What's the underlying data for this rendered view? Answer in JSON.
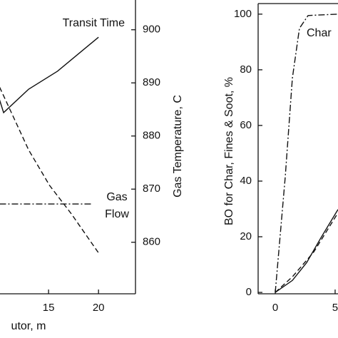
{
  "chart_data": [
    {
      "type": "line",
      "x_label": "utor, m",
      "y2_label": "Gas Temperature, C",
      "annotations": [
        "Transit Time",
        "Gas",
        "Flow"
      ],
      "xlim": [
        10.14,
        23.7
      ],
      "xticks": [
        15,
        20
      ],
      "y2lim": [
        850.3,
        905.6
      ],
      "y2ticks": [
        860,
        870,
        880,
        890,
        900
      ],
      "series": [
        {
          "style": "solid",
          "color": "#111111",
          "axis": "y2",
          "x": [
            10.1,
            10.5,
            13.0,
            15.9,
            20.0
          ],
          "values": [
            886.8,
            884.4,
            888.8,
            892.2,
            898.6
          ]
        },
        {
          "style": "dashed",
          "color": "#111111",
          "axis": "y2",
          "x": [
            10.1,
            13.0,
            15.1,
            17.3,
            20.0
          ],
          "values": [
            889.2,
            877.4,
            870.7,
            865.3,
            858.0
          ]
        },
        {
          "style": "dashdot",
          "color": "#111111",
          "axis": "y2",
          "x": [
            10.1,
            19.4
          ],
          "values": [
            867.2,
            867.2
          ]
        }
      ]
    },
    {
      "type": "line",
      "y_label": "BO for Char, Fines & Soot, %",
      "annotations": [
        "Char"
      ],
      "xlim": [
        -1.43,
        5.24
      ],
      "xticks": [
        0,
        5
      ],
      "ylim": [
        -0.5,
        103.8
      ],
      "yticks": [
        0,
        20,
        40,
        60,
        80,
        100
      ],
      "series": [
        {
          "style": "dashdot",
          "color": "#111111",
          "x": [
            0,
            0.83,
            1.43,
            2.02,
            2.74,
            5.24
          ],
          "values": [
            0,
            41.3,
            77,
            94.9,
            99.5,
            100
          ]
        },
        {
          "style": "solid",
          "color": "#111111",
          "x": [
            0,
            1.43,
            2.62,
            3.81,
            5.24
          ],
          "values": [
            0,
            4.3,
            10.7,
            19.6,
            29.8
          ]
        },
        {
          "style": "dashed",
          "color": "#111111",
          "x": [
            0,
            1.43,
            3.21,
            5.24
          ],
          "values": [
            0,
            5.6,
            14.5,
            28.6
          ]
        }
      ]
    }
  ]
}
